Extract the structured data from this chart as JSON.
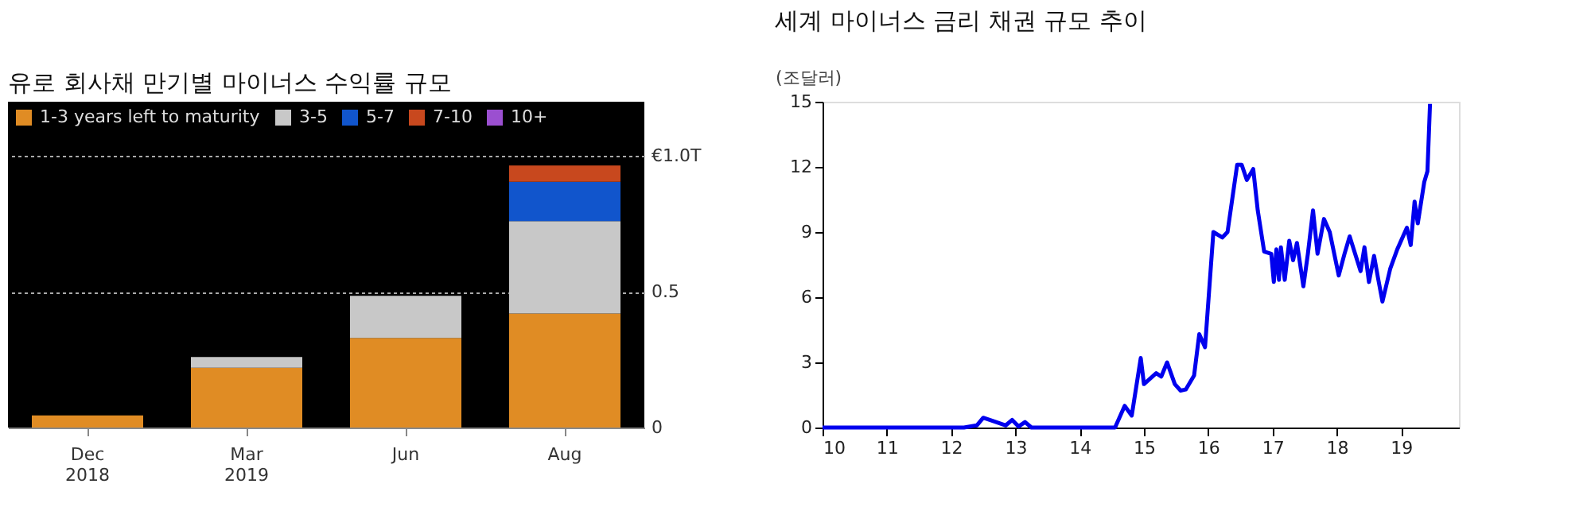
{
  "chart_data": [
    {
      "type": "bar",
      "title": "유로 회사채 만기별 마이너스 수익률 규모",
      "categories": [
        "Dec 2018",
        "Mar 2019",
        "Jun",
        "Aug"
      ],
      "stacked": true,
      "legend": "top left",
      "grid": "y",
      "ylim": [
        0,
        1.2
      ],
      "yticks": [
        0,
        0.5,
        {
          "value": 1.0,
          "label": "€1.0T"
        }
      ],
      "series": [
        {
          "name": "1-3 years left to maturity",
          "color": "#e08c24",
          "values": [
            0.045,
            0.22,
            0.33,
            0.42
          ]
        },
        {
          "name": "3-5",
          "color": "#c8c8c8",
          "values": [
            null,
            0.04,
            0.155,
            0.34
          ]
        },
        {
          "name": "5-7",
          "color": "#1155cc",
          "values": [
            null,
            null,
            null,
            0.145
          ]
        },
        {
          "name": "7-10",
          "color": "#c8481e",
          "values": [
            null,
            null,
            null,
            0.06
          ]
        },
        {
          "name": "10+",
          "color": "#9b4fd0",
          "values": [
            null,
            null,
            null,
            null
          ]
        }
      ]
    },
    {
      "type": "line",
      "title": "세계 마이너스 금리 채권 규모 추이",
      "ylabel": "(조달러)",
      "legend": false,
      "grid": false,
      "xlim": [
        10,
        19.9
      ],
      "xticks": [
        10,
        11,
        12,
        13,
        14,
        15,
        16,
        17,
        18,
        19
      ],
      "ylim": [
        0,
        15
      ],
      "yticks": [
        0,
        3,
        6,
        9,
        12,
        15
      ],
      "series": [
        {
          "color": "#0000ee",
          "x": [
            10,
            12.2,
            12.4,
            12.5,
            12.7,
            12.85,
            12.95,
            13.05,
            13.15,
            13.25,
            14.55,
            14.7,
            14.81,
            14.95,
            15.0,
            15.19,
            15.27,
            15.36,
            15.48,
            15.57,
            15.65,
            15.78,
            15.86,
            15.95,
            16.08,
            16.22,
            16.3,
            16.45,
            16.52,
            16.6,
            16.7,
            16.77,
            16.87,
            16.98,
            17.02,
            17.06,
            17.1,
            17.13,
            17.19,
            17.26,
            17.32,
            17.38,
            17.48,
            17.55,
            17.63,
            17.7,
            17.8,
            17.89,
            18.03,
            18.12,
            18.2,
            18.37,
            18.43,
            18.5,
            18.58,
            18.64,
            18.71,
            18.83,
            18.94,
            19.09,
            19.15,
            19.21,
            19.26,
            19.36,
            19.41,
            19.45
          ],
          "values": [
            0,
            0,
            0.1,
            0.45,
            0.25,
            0.1,
            0.35,
            0.05,
            0.25,
            0,
            0,
            1.0,
            0.55,
            3.2,
            2.0,
            2.5,
            2.35,
            3.0,
            2.0,
            1.7,
            1.75,
            2.4,
            4.3,
            3.7,
            9.0,
            8.75,
            9.0,
            12.1,
            12.1,
            11.4,
            11.9,
            10.0,
            8.1,
            8.0,
            6.7,
            8.2,
            6.8,
            8.3,
            6.8,
            8.6,
            7.7,
            8.5,
            6.5,
            8.0,
            10.0,
            8.0,
            9.6,
            9.0,
            7.0,
            8.0,
            8.8,
            7.2,
            8.3,
            6.7,
            7.9,
            6.9,
            5.8,
            7.3,
            8.2,
            9.2,
            8.4,
            10.4,
            9.4,
            11.3,
            11.8,
            14.9
          ]
        }
      ]
    }
  ]
}
